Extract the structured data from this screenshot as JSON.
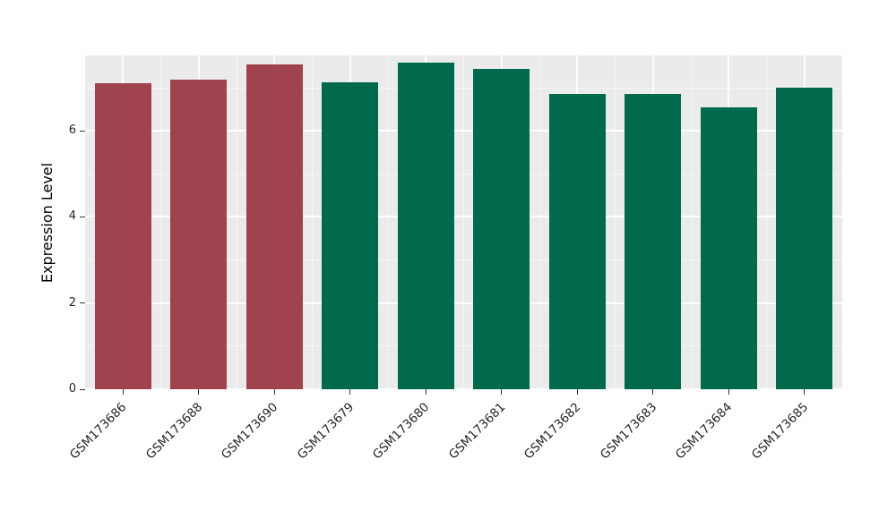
{
  "chart_data": {
    "type": "bar",
    "title": "",
    "xlabel": "",
    "ylabel": "Expression Level",
    "categories": [
      "GSM173686",
      "GSM173688",
      "GSM173690",
      "GSM173679",
      "GSM173680",
      "GSM173681",
      "GSM173682",
      "GSM173683",
      "GSM173684",
      "GSM173685"
    ],
    "values": [
      7.1,
      7.18,
      7.55,
      7.13,
      7.58,
      7.44,
      6.86,
      6.86,
      6.55,
      7.0
    ],
    "bar_colors": [
      "#A1424F",
      "#A1424F",
      "#A1424F",
      "#01694C",
      "#01694C",
      "#01694C",
      "#01694C",
      "#01694C",
      "#01694C",
      "#01694C"
    ],
    "color_groups": {
      "maroon": "#A1424F",
      "green": "#01694C"
    },
    "ylim": [
      0,
      7.75
    ],
    "yticks_major": [
      0,
      2,
      4,
      6
    ],
    "yticks_minor": [
      1,
      3,
      5,
      7
    ],
    "ytick_labels": [
      "0",
      "2",
      "4",
      "6"
    ],
    "grid": "on",
    "legend": "none",
    "panel_background": "#EBEBEB",
    "gridline_color": "#FFFFFF"
  }
}
